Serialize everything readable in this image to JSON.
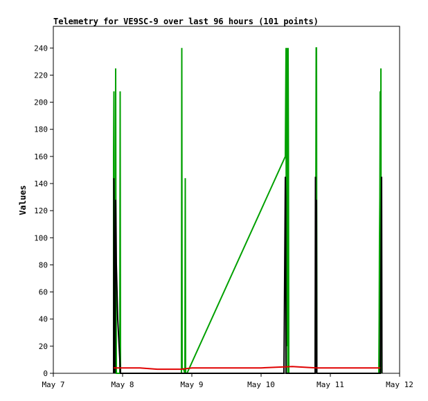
{
  "chart_data": {
    "type": "line",
    "title": "Telemetry for VE9SC-9 over last 96 hours (101 points)",
    "xlabel": "",
    "ylabel": "Values",
    "x_unit": "days",
    "xlim": [
      0,
      5
    ],
    "ylim": [
      0,
      256
    ],
    "x_ticks": [
      {
        "value": 0,
        "label": "May 7"
      },
      {
        "value": 1,
        "label": "May 8"
      },
      {
        "value": 2,
        "label": "May 9"
      },
      {
        "value": 3,
        "label": "May 10"
      },
      {
        "value": 4,
        "label": "May 11"
      },
      {
        "value": 5,
        "label": "May 12"
      }
    ],
    "y_ticks": [
      0,
      20,
      40,
      60,
      80,
      100,
      120,
      140,
      160,
      180,
      200,
      220,
      240
    ],
    "grid": false,
    "legend": "none",
    "series": [
      {
        "color": "#00a000",
        "points": [
          [
            0.87,
            0
          ],
          [
            0.87,
            160
          ],
          [
            0.875,
            208
          ],
          [
            0.88,
            0
          ],
          [
            0.895,
            60
          ],
          [
            0.9,
            225
          ],
          [
            0.905,
            80
          ],
          [
            0.91,
            0
          ],
          [
            0.96,
            0
          ],
          [
            0.965,
            208
          ],
          [
            0.97,
            0
          ],
          [
            1.85,
            0
          ],
          [
            1.855,
            240
          ],
          [
            1.86,
            4
          ],
          [
            1.88,
            3
          ],
          [
            1.9,
            0
          ],
          [
            1.905,
            144
          ],
          [
            1.91,
            0
          ],
          [
            1.93,
            0
          ],
          [
            3.35,
            160
          ],
          [
            3.36,
            240
          ],
          [
            3.365,
            20
          ],
          [
            3.375,
            240
          ],
          [
            3.38,
            192
          ],
          [
            3.385,
            0
          ],
          [
            3.39,
            240
          ],
          [
            3.395,
            160
          ],
          [
            3.4,
            0
          ],
          [
            3.78,
            0
          ],
          [
            3.785,
            60
          ],
          [
            3.79,
            120
          ],
          [
            3.795,
            240
          ],
          [
            3.8,
            240
          ],
          [
            3.805,
            0
          ],
          [
            4.7,
            0
          ],
          [
            4.705,
            40
          ],
          [
            4.71,
            100
          ],
          [
            4.715,
            130
          ],
          [
            4.72,
            208
          ],
          [
            4.725,
            40
          ],
          [
            4.73,
            225
          ],
          [
            4.735,
            0
          ]
        ]
      },
      {
        "color": "#000000",
        "points": [
          [
            0.87,
            0
          ],
          [
            0.875,
            144
          ],
          [
            0.88,
            60
          ],
          [
            0.885,
            45
          ],
          [
            0.89,
            0
          ],
          [
            0.9,
            128
          ],
          [
            0.905,
            110
          ],
          [
            0.91,
            80
          ],
          [
            0.93,
            40
          ],
          [
            0.95,
            20
          ],
          [
            0.97,
            0
          ],
          [
            3.33,
            0
          ],
          [
            3.34,
            72
          ],
          [
            3.35,
            145
          ],
          [
            3.355,
            130
          ],
          [
            3.36,
            0
          ],
          [
            3.78,
            0
          ],
          [
            3.785,
            145
          ],
          [
            3.79,
            0
          ],
          [
            3.795,
            57
          ],
          [
            3.8,
            128
          ],
          [
            3.805,
            0
          ],
          [
            4.72,
            0
          ],
          [
            4.73,
            72
          ],
          [
            4.74,
            145
          ],
          [
            4.745,
            0
          ]
        ]
      },
      {
        "color": "#e00000",
        "points": [
          [
            0.87,
            4
          ],
          [
            1.0,
            4
          ],
          [
            1.25,
            4
          ],
          [
            1.5,
            3
          ],
          [
            1.85,
            3
          ],
          [
            2.0,
            4
          ],
          [
            3.0,
            4
          ],
          [
            3.45,
            5
          ],
          [
            3.8,
            4
          ],
          [
            4.2,
            4
          ],
          [
            4.72,
            4
          ]
        ]
      }
    ]
  }
}
